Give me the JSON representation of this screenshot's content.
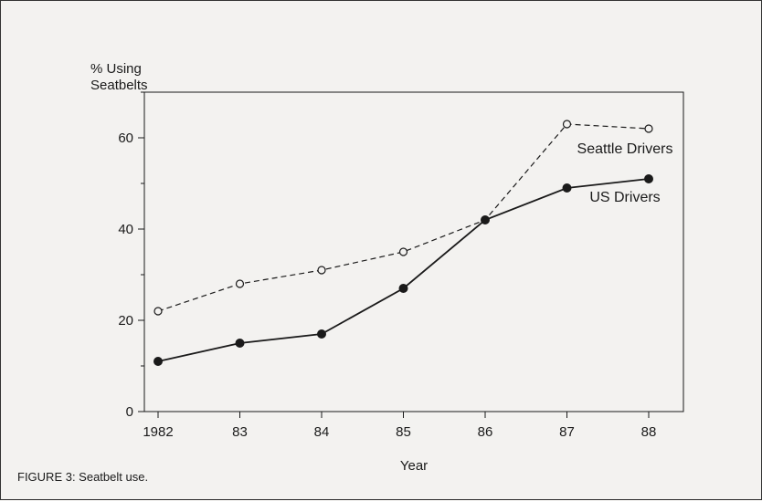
{
  "chart_data": {
    "type": "line",
    "ylabel_line1": "% Using",
    "ylabel_line2": "Seatbelts",
    "xlabel": "Year",
    "categories": [
      "1982",
      "83",
      "84",
      "85",
      "86",
      "87",
      "88"
    ],
    "yticks": [
      0,
      20,
      40,
      60
    ],
    "ylim": [
      0,
      70
    ],
    "grid": false,
    "series": [
      {
        "name": "Seattle Drivers",
        "values": [
          22,
          28,
          31,
          35,
          42,
          63,
          62
        ],
        "style": "dashed",
        "marker": "open-circle",
        "color": "#1a1a1a"
      },
      {
        "name": "US Drivers",
        "values": [
          11,
          15,
          17,
          27,
          42,
          49,
          51
        ],
        "style": "solid",
        "marker": "filled-circle",
        "color": "#1a1a1a"
      }
    ]
  },
  "caption": "FIGURE 3:  Seatbelt use."
}
